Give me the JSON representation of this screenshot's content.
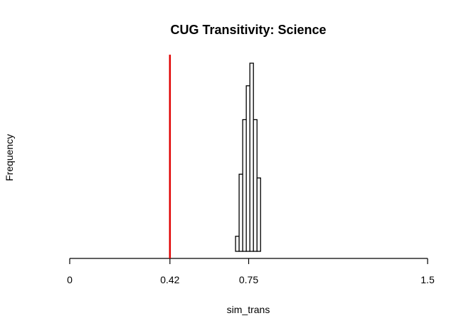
{
  "chart_data": {
    "type": "bar",
    "title": "CUG Transitivity:  Science",
    "xlabel": "sim_trans",
    "ylabel": "Frequency",
    "xlim": [
      0,
      1.5
    ],
    "x_ticks": [
      {
        "value": 0,
        "label": "0"
      },
      {
        "value": 0.42,
        "label": "0.42"
      },
      {
        "value": 0.75,
        "label": "0.75"
      },
      {
        "value": 1.5,
        "label": "1.5"
      }
    ],
    "bins": [
      {
        "x0": 0.695,
        "x1": 0.71,
        "rel_height": 0.08
      },
      {
        "x0": 0.71,
        "x1": 0.725,
        "rel_height": 0.41
      },
      {
        "x0": 0.725,
        "x1": 0.74,
        "rel_height": 0.7
      },
      {
        "x0": 0.74,
        "x1": 0.755,
        "rel_height": 0.88
      },
      {
        "x0": 0.755,
        "x1": 0.77,
        "rel_height": 1.0
      },
      {
        "x0": 0.77,
        "x1": 0.785,
        "rel_height": 0.7
      },
      {
        "x0": 0.785,
        "x1": 0.8,
        "rel_height": 0.39
      }
    ],
    "reference_line": {
      "value": 0.42,
      "color": "#e00000"
    },
    "bar_fill": "#ffffff",
    "bar_stroke": "#000000",
    "grid": false,
    "y_axis_shown": false
  }
}
